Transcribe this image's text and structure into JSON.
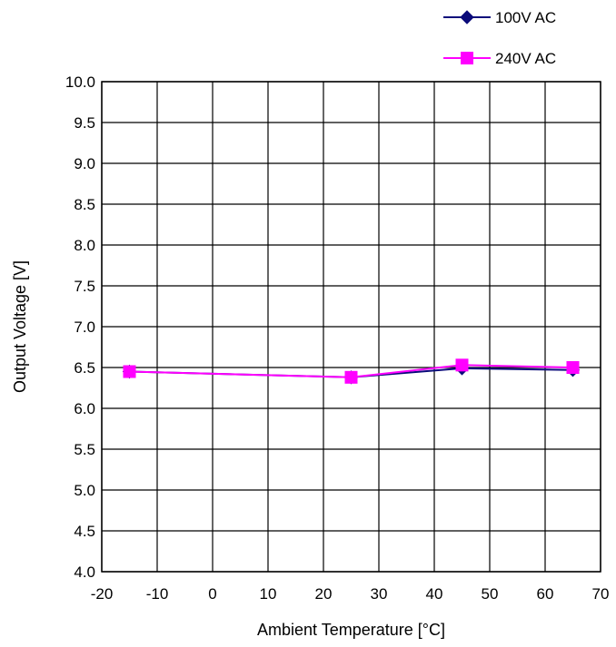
{
  "chart_data": {
    "type": "line",
    "title": "",
    "xlabel": "Ambient Temperature [°C]",
    "ylabel": "Output Voltage [V]",
    "xlim": [
      -20,
      70
    ],
    "ylim": [
      4.0,
      10.0
    ],
    "x_ticks": [
      "-20",
      "-10",
      "0",
      "10",
      "20",
      "30",
      "40",
      "50",
      "60",
      "70"
    ],
    "y_ticks": [
      "10.0",
      "9.5",
      "9.0",
      "8.5",
      "8.0",
      "7.5",
      "7.0",
      "6.5",
      "6.0",
      "5.5",
      "5.0",
      "4.5",
      "4.0"
    ],
    "grid": true,
    "legend_position": "top-right",
    "series": [
      {
        "name": "100V AC",
        "color": "#0b0b7a",
        "marker": "diamond",
        "x": [
          -15,
          25,
          45,
          65
        ],
        "y": [
          6.45,
          6.38,
          6.49,
          6.47
        ]
      },
      {
        "name": "240V AC",
        "color": "#ff00ff",
        "marker": "square",
        "x": [
          -15,
          25,
          45,
          65
        ],
        "y": [
          6.45,
          6.38,
          6.53,
          6.5
        ]
      }
    ]
  }
}
